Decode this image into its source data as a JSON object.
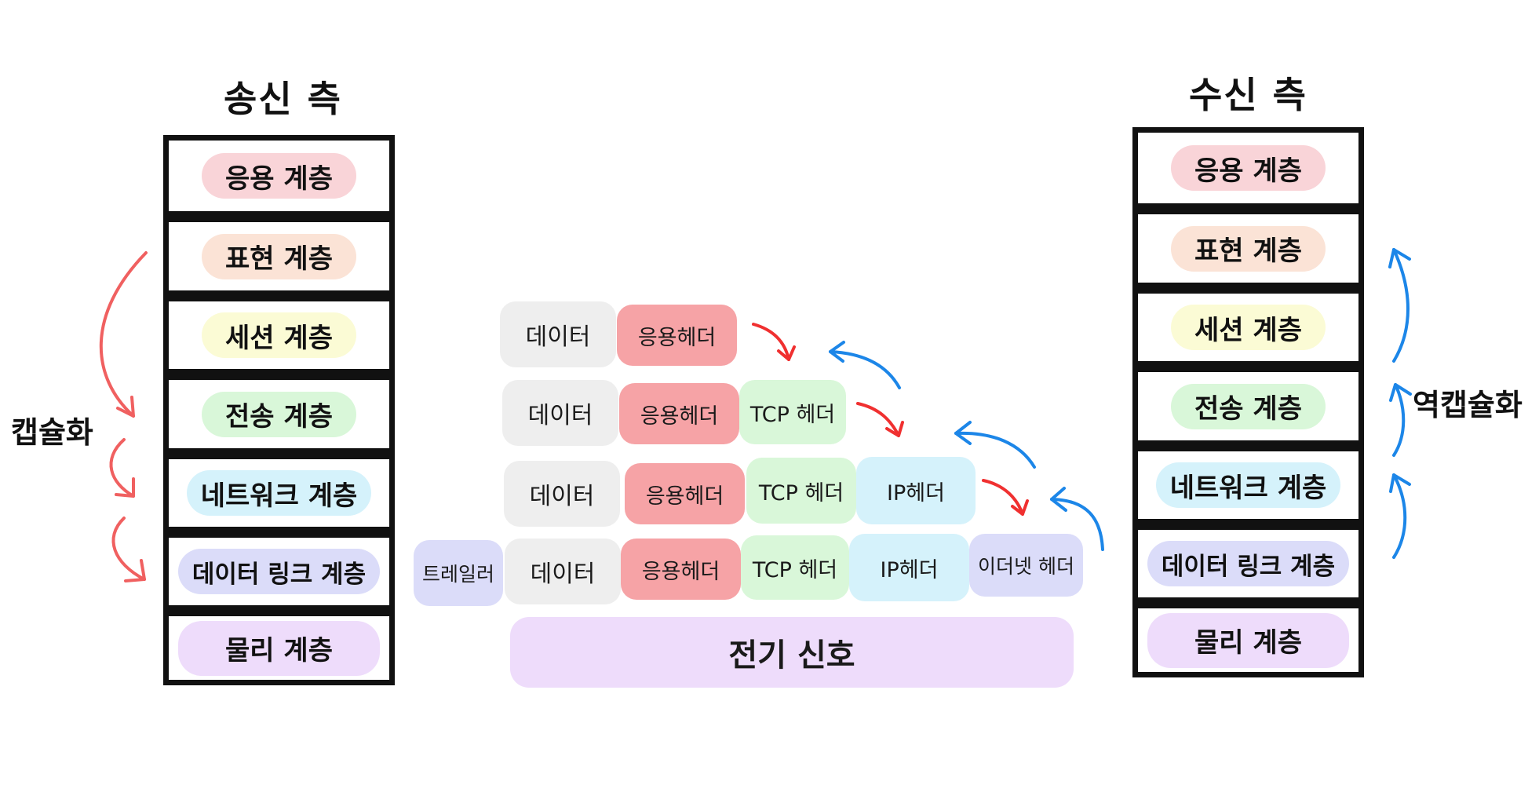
{
  "sender": {
    "title": "송신 측",
    "layers": [
      "응용 계층",
      "표현 계층",
      "세션 계층",
      "전송 계층",
      "네트워크 계층",
      "데이터 링크 계층",
      "물리 계층"
    ]
  },
  "receiver": {
    "title": "수신 측",
    "layers": [
      "응용 계층",
      "표현 계층",
      "세션 계층",
      "전송 계층",
      "네트워크 계층",
      "데이터 링크 계층",
      "물리 계층"
    ]
  },
  "encapsulation_label": "캡슐화",
  "decapsulation_label": "역캡슐화",
  "packets": {
    "data": "데이터",
    "app_header": "응용헤더",
    "tcp_header": "TCP 헤더",
    "ip_header": "IP헤더",
    "ethernet_header": "이더넷 헤더",
    "trailer": "트레일러",
    "signal": "전기 신호"
  },
  "colors": {
    "app": "#f9d4d8",
    "presentation": "#fbe3d6",
    "session": "#fbfbd5",
    "transport": "#d9f7d9",
    "network": "#d5f2fb",
    "datalink": "#dbdcf9",
    "physical": "#eedcfb",
    "data_block": "#eeeeee",
    "app_header_block": "#f6a3a6",
    "encap_arrow": "#f06060",
    "decap_arrow": "#1c86e8"
  }
}
